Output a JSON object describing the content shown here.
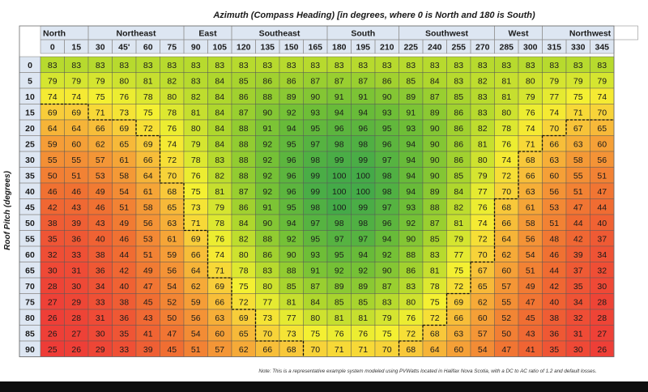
{
  "chart_data": {
    "type": "heatmap",
    "title": "Azimuth (Compass Heading) [in degrees, where 0 is North and 180 is South)",
    "xlabel": "Azimuth (Compass Heading)",
    "ylabel": "Roof Pitch (degrees)",
    "direction_groups": [
      {
        "label": "North",
        "start": 0,
        "span": 2
      },
      {
        "label": "Northeast",
        "start": 2,
        "span": 4
      },
      {
        "label": "East",
        "start": 6,
        "span": 2
      },
      {
        "label": "Southeast",
        "start": 8,
        "span": 4
      },
      {
        "label": "South",
        "start": 12,
        "span": 3
      },
      {
        "label": "Southwest",
        "start": 15,
        "span": 4
      },
      {
        "label": "West",
        "start": 19,
        "span": 2
      },
      {
        "label": "Northwest",
        "start": 21,
        "span": 4
      }
    ],
    "azimuths": [
      "0",
      "15",
      "30",
      "45'",
      "60",
      "75",
      "90",
      "105",
      "120",
      "135",
      "150",
      "165",
      "180",
      "195",
      "210",
      "225",
      "240",
      "255",
      "270",
      "285",
      "300",
      "315",
      "330",
      "345"
    ],
    "pitches": [
      "0",
      "5",
      "10",
      "15",
      "20",
      "25",
      "30",
      "35",
      "40",
      "45",
      "50",
      "55",
      "60",
      "65",
      "70",
      "75",
      "80",
      "85",
      "90"
    ],
    "values": [
      [
        83,
        83,
        83,
        83,
        83,
        83,
        83,
        83,
        83,
        83,
        83,
        83,
        83,
        83,
        83,
        83,
        83,
        83,
        83,
        83,
        83,
        83,
        83,
        83
      ],
      [
        79,
        79,
        79,
        80,
        81,
        82,
        83,
        84,
        85,
        86,
        86,
        87,
        87,
        87,
        86,
        85,
        84,
        83,
        82,
        81,
        80,
        79,
        79,
        79
      ],
      [
        74,
        74,
        75,
        76,
        78,
        80,
        82,
        84,
        86,
        88,
        89,
        90,
        91,
        91,
        90,
        89,
        87,
        85,
        83,
        81,
        79,
        77,
        75,
        74
      ],
      [
        69,
        69,
        71,
        73,
        75,
        78,
        81,
        84,
        87,
        90,
        92,
        93,
        94,
        94,
        93,
        91,
        89,
        86,
        83,
        80,
        76,
        74,
        71,
        70
      ],
      [
        64,
        64,
        66,
        69,
        72,
        76,
        80,
        84,
        88,
        91,
        94,
        95,
        96,
        96,
        95,
        93,
        90,
        86,
        82,
        78,
        74,
        70,
        67,
        65
      ],
      [
        59,
        60,
        62,
        65,
        69,
        74,
        79,
        84,
        88,
        92,
        95,
        97,
        98,
        98,
        96,
        94,
        90,
        86,
        81,
        76,
        71,
        66,
        63,
        60
      ],
      [
        55,
        55,
        57,
        61,
        66,
        72,
        78,
        83,
        88,
        92,
        96,
        98,
        99,
        99,
        97,
        94,
        90,
        86,
        80,
        74,
        68,
        63,
        58,
        56
      ],
      [
        50,
        51,
        53,
        58,
        64,
        70,
        76,
        82,
        88,
        92,
        96,
        99,
        100,
        100,
        98,
        94,
        90,
        85,
        79,
        72,
        66,
        60,
        55,
        51
      ],
      [
        46,
        46,
        49,
        54,
        61,
        68,
        75,
        81,
        87,
        92,
        96,
        99,
        100,
        100,
        98,
        94,
        89,
        84,
        77,
        70,
        63,
        56,
        51,
        47
      ],
      [
        42,
        43,
        46,
        51,
        58,
        65,
        73,
        79,
        86,
        91,
        95,
        98,
        100,
        99,
        97,
        93,
        88,
        82,
        76,
        68,
        61,
        53,
        47,
        44
      ],
      [
        38,
        39,
        43,
        49,
        56,
        63,
        71,
        78,
        84,
        90,
        94,
        97,
        98,
        98,
        96,
        92,
        87,
        81,
        74,
        66,
        58,
        51,
        44,
        40
      ],
      [
        35,
        36,
        40,
        46,
        53,
        61,
        69,
        76,
        82,
        88,
        92,
        95,
        97,
        97,
        94,
        90,
        85,
        79,
        72,
        64,
        56,
        48,
        42,
        37
      ],
      [
        32,
        33,
        38,
        44,
        51,
        59,
        66,
        74,
        80,
        86,
        90,
        93,
        95,
        94,
        92,
        88,
        83,
        77,
        70,
        62,
        54,
        46,
        39,
        34
      ],
      [
        30,
        31,
        36,
        42,
        49,
        56,
        64,
        71,
        78,
        83,
        88,
        91,
        92,
        92,
        90,
        86,
        81,
        75,
        67,
        60,
        51,
        44,
        37,
        32
      ],
      [
        28,
        30,
        34,
        40,
        47,
        54,
        62,
        69,
        75,
        80,
        85,
        87,
        89,
        89,
        87,
        83,
        78,
        72,
        65,
        57,
        49,
        42,
        35,
        30
      ],
      [
        27,
        29,
        33,
        38,
        45,
        52,
        59,
        66,
        72,
        77,
        81,
        84,
        85,
        85,
        83,
        80,
        75,
        69,
        62,
        55,
        47,
        40,
        34,
        28
      ],
      [
        26,
        28,
        31,
        36,
        43,
        50,
        56,
        63,
        69,
        73,
        77,
        80,
        81,
        81,
        79,
        76,
        72,
        66,
        60,
        52,
        45,
        38,
        32,
        28
      ],
      [
        26,
        27,
        30,
        35,
        41,
        47,
        54,
        60,
        65,
        70,
        73,
        75,
        76,
        76,
        75,
        72,
        68,
        63,
        57,
        50,
        43,
        36,
        31,
        27
      ],
      [
        25,
        26,
        29,
        33,
        39,
        45,
        51,
        57,
        62,
        66,
        68,
        70,
        71,
        71,
        70,
        68,
        64,
        60,
        54,
        47,
        41,
        35,
        30,
        26
      ]
    ],
    "legend": "none",
    "note": "Note:  This is a representative example system modeled using PVWatts located in Halifax Nova Scotia, with a DC to AC ratio of 1.2 and default losses."
  }
}
